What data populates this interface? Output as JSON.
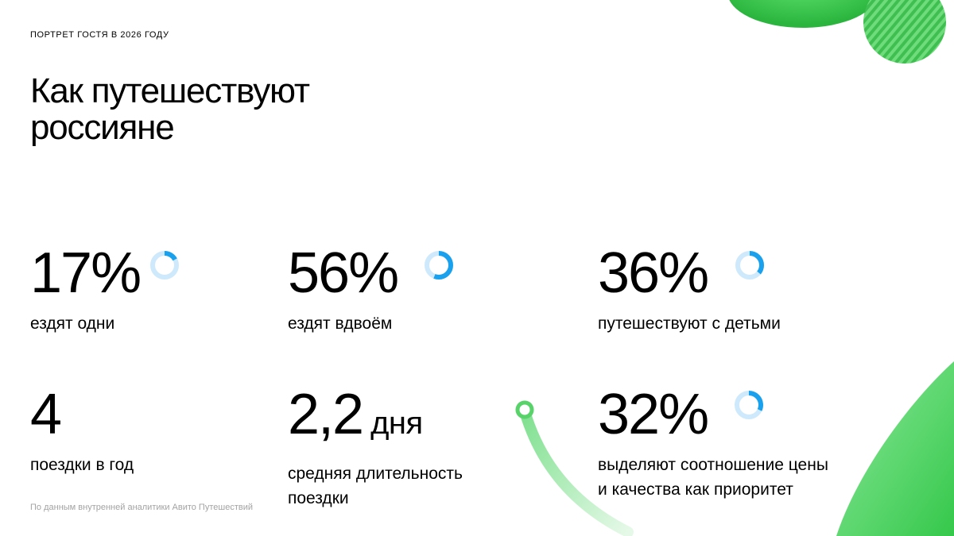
{
  "header": {
    "kicker": "ПОРТРЕТ ГОСТЯ В 2026 ГОДУ",
    "title_line1": "Как путешествуют",
    "title_line2": "россияне"
  },
  "stats": [
    {
      "value": "17%",
      "label": "ездят одни",
      "ring_fraction": 0.17
    },
    {
      "value": "56%",
      "label": "ездят вдвоём",
      "ring_fraction": 0.56
    },
    {
      "value": "36%",
      "label": "путешествуют с детьми",
      "ring_fraction": 0.36
    },
    {
      "value": "4",
      "label": "поездки в год"
    },
    {
      "value": "2,2",
      "unit": "дня",
      "label_line1": "средняя длительность",
      "label_line2": "поездки"
    },
    {
      "value": "32%",
      "label_line1": "выделяют соотношение цены",
      "label_line2": "и качества как приоритет",
      "ring_fraction": 0.32
    }
  ],
  "footnote": "По данным внутренней аналитики Авито Путешествий",
  "colors": {
    "ring_filled": "#1aa1ee",
    "ring_track": "#cde9fb",
    "green_main": "#3fd35a",
    "green_light": "#9de8a8"
  }
}
